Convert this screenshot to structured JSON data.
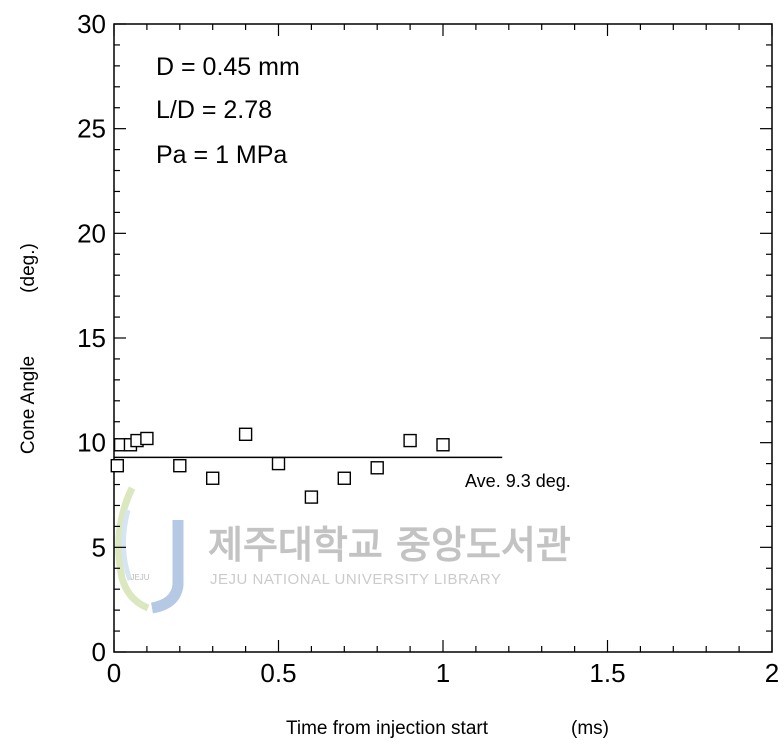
{
  "chart_data": {
    "type": "scatter",
    "xlabel": "Time from injection start",
    "xlabel_unit": "(ms)",
    "ylabel": "Cone Angle",
    "ylabel_unit": "(deg.)",
    "xlim": [
      0,
      2
    ],
    "ylim": [
      0,
      30
    ],
    "x_ticks": [
      0,
      0.5,
      1,
      1.5,
      2
    ],
    "x_tick_labels": [
      "0",
      "0.5",
      "1",
      "1.5",
      "2"
    ],
    "y_ticks": [
      0,
      5,
      10,
      15,
      20,
      25,
      30
    ],
    "y_tick_labels": [
      "0",
      "5",
      "10",
      "15",
      "20",
      "25",
      "30"
    ],
    "grid": false,
    "annotations": [
      "D = 0.45 mm",
      "L/D = 2.78",
      "Pa = 1 MPa"
    ],
    "series": [
      {
        "marker": "open-square",
        "x": [
          0.01,
          0.02,
          0.05,
          0.07,
          0.1,
          0.2,
          0.3,
          0.4,
          0.5,
          0.6,
          0.7,
          0.8,
          0.9,
          1.0
        ],
        "y": [
          8.9,
          9.9,
          9.9,
          10.1,
          10.2,
          8.9,
          8.3,
          10.4,
          9.0,
          7.4,
          8.3,
          8.8,
          10.1,
          9.9
        ]
      }
    ],
    "average_line": {
      "value": 9.3,
      "x_range": [
        0,
        1.18
      ],
      "label": "Ave. 9.3 deg."
    }
  },
  "watermark": {
    "korean_text": "제주대학교 중앙도서관",
    "english_text": "JEJU NATIONAL UNIVERSITY  LIBRARY",
    "logo_text": "JEJU"
  }
}
